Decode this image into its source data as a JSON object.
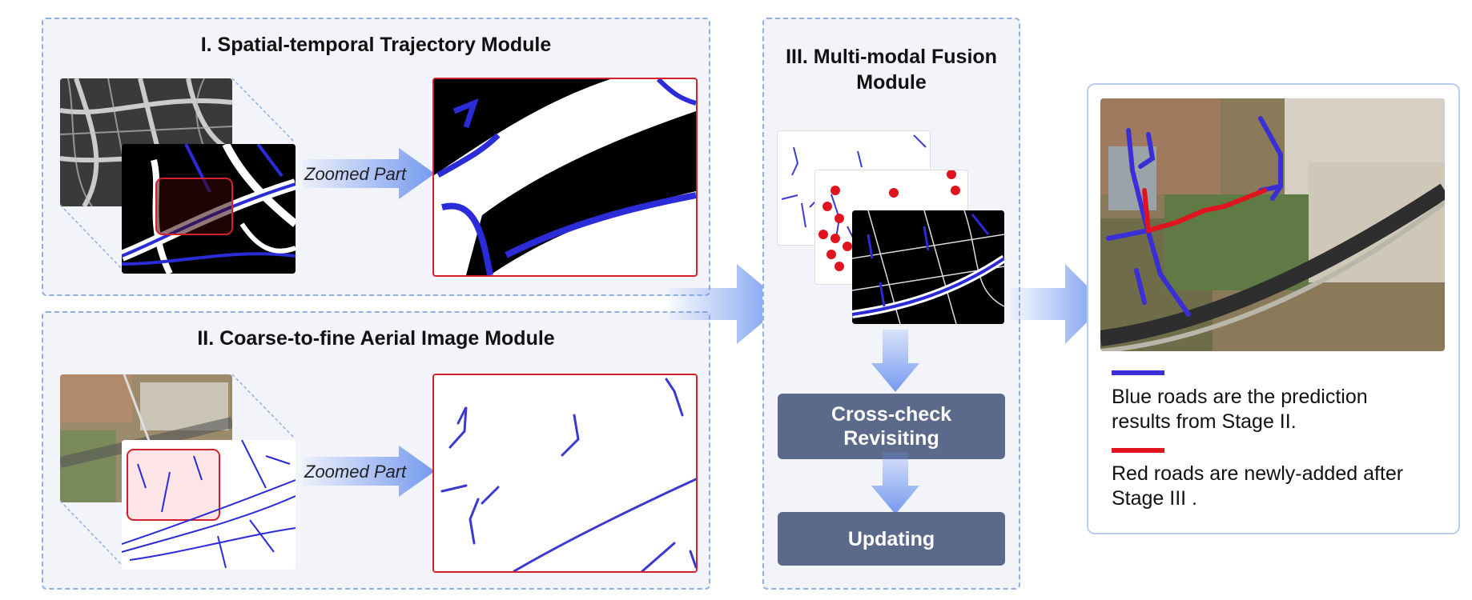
{
  "panel1": {
    "title": "I. Spatial-temporal Trajectory Module",
    "zoom_label": "Zoomed Part"
  },
  "panel2": {
    "title": "II. Coarse-to-fine Aerial Image Module",
    "zoom_label": "Zoomed Part"
  },
  "panel3": {
    "title_line1": "III. Multi-modal Fusion",
    "title_line2": "Module",
    "crosscheck_line1": "Cross-check",
    "crosscheck_line2": "Revisiting",
    "updating": "Updating"
  },
  "result": {
    "blue_text_line1": "Blue roads are the prediction",
    "blue_text_line2": "results from Stage II.",
    "red_text_line1": "Red roads are newly-added after",
    "red_text_line2": "Stage III ."
  },
  "colors": {
    "panel_bg": "#f2f4fa",
    "panel_border": "#8fb0e0",
    "arrow": "#6f95f0",
    "button": "#5b6a8a",
    "blue_road": "#3a2fd6",
    "red_road": "#e0141e",
    "zoom_frame": "#d4202a"
  }
}
